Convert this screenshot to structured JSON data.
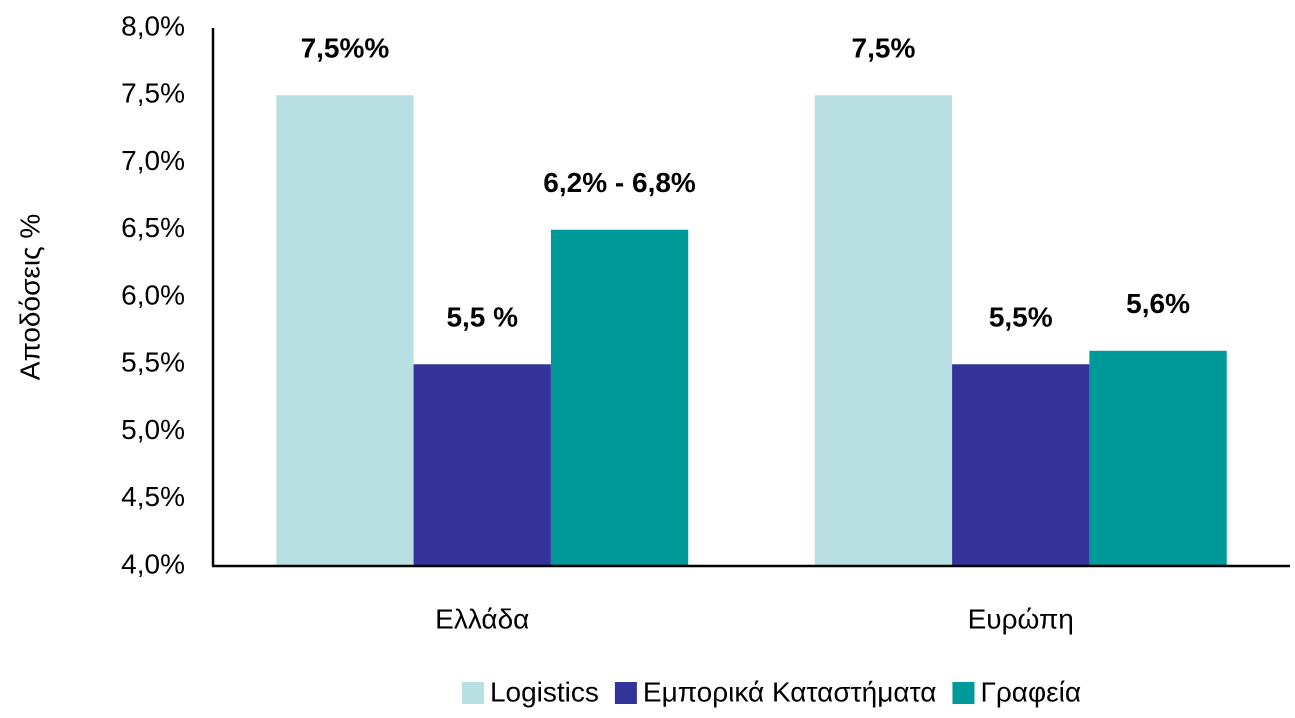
{
  "chart_data": {
    "type": "bar",
    "y_label": "Αποδόσεις %",
    "categories": [
      "Ελλάδα",
      "Ευρώπη"
    ],
    "series": [
      {
        "name": "Logistics",
        "color": "#b8dfe1",
        "values": [
          7.5,
          7.5
        ],
        "value_labels": [
          "7,5%%",
          "7,5%"
        ]
      },
      {
        "name": "Εμπορικά Καταστήματα",
        "color": "#333399",
        "values": [
          5.5,
          5.5
        ],
        "value_labels": [
          "5,5 %",
          "5,5%"
        ]
      },
      {
        "name": "Γραφεία",
        "color": "#009999",
        "values": [
          6.5,
          5.6
        ],
        "value_labels": [
          "6,2% - 6,8%",
          "5,6%"
        ]
      }
    ],
    "ylim": [
      4,
      8
    ],
    "yticks": [
      {
        "value": 4,
        "label": "4,0%"
      },
      {
        "value": 4.5,
        "label": "4,5%"
      },
      {
        "value": 5,
        "label": "5,0%"
      },
      {
        "value": 5.5,
        "label": "5,5%"
      },
      {
        "value": 6,
        "label": "6,0%"
      },
      {
        "value": 6.5,
        "label": "6,5%"
      },
      {
        "value": 7,
        "label": "7,0%"
      },
      {
        "value": 7.5,
        "label": "7,5%"
      },
      {
        "value": 8,
        "label": "8,0%"
      }
    ],
    "grid": false,
    "legend": "bottom"
  }
}
